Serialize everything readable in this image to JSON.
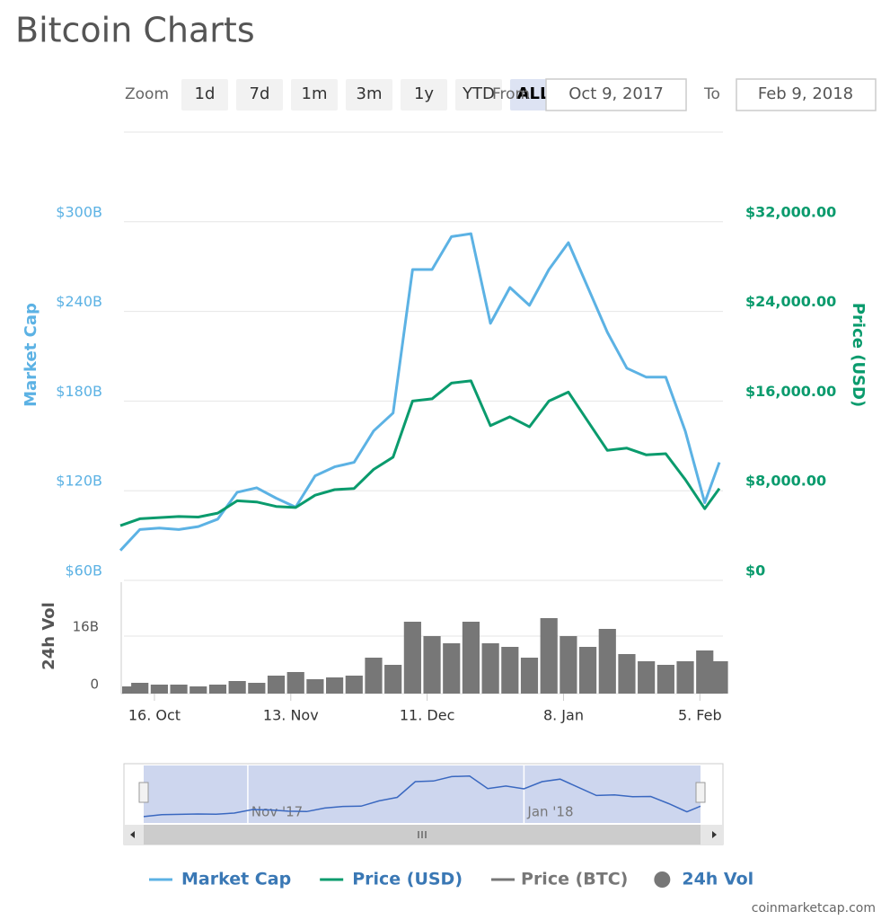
{
  "header": {
    "title": "Bitcoin Charts"
  },
  "controls": {
    "zoom_label": "Zoom",
    "zoom_buttons": [
      "1d",
      "7d",
      "1m",
      "3m",
      "1y",
      "YTD",
      "ALL"
    ],
    "from_label": "From",
    "from_date": "Oct 9, 2017",
    "to_label": "To",
    "to_date": "Feb 9, 2018"
  },
  "chart_data": [
    {
      "type": "line",
      "y_label": "Market Cap",
      "y2_label": "Price (USD)",
      "grid": true,
      "x": [
        "2017-10-09",
        "2017-10-13",
        "2017-10-17",
        "2017-10-21",
        "2017-10-25",
        "2017-10-29",
        "2017-11-02",
        "2017-11-06",
        "2017-11-10",
        "2017-11-14",
        "2017-11-18",
        "2017-11-22",
        "2017-11-26",
        "2017-11-30",
        "2017-12-04",
        "2017-12-08",
        "2017-12-12",
        "2017-12-16",
        "2017-12-20",
        "2017-12-24",
        "2017-12-28",
        "2018-01-01",
        "2018-01-05",
        "2018-01-09",
        "2018-01-13",
        "2018-01-17",
        "2018-01-21",
        "2018-01-25",
        "2018-01-29",
        "2018-02-02",
        "2018-02-06",
        "2018-02-09"
      ],
      "xlim": [
        "2017-10-09",
        "2018-02-09"
      ],
      "ylim": [
        60,
        360
      ],
      "yticks": [
        {
          "value": 60,
          "label": "$60B"
        },
        {
          "value": 120,
          "label": "$120B"
        },
        {
          "value": 180,
          "label": "$180B"
        },
        {
          "value": 240,
          "label": "$240B"
        },
        {
          "value": 300,
          "label": "$300B"
        }
      ],
      "y2lim": [
        0,
        40000
      ],
      "y2ticks": [
        {
          "value": 0,
          "label": "$0"
        },
        {
          "value": 8000,
          "label": "$8,000.00"
        },
        {
          "value": 16000,
          "label": "$16,000.00"
        },
        {
          "value": 24000,
          "label": "$24,000.00"
        },
        {
          "value": 32000,
          "label": "$32,000.00"
        }
      ],
      "series": [
        {
          "name": "Market Cap",
          "color": "#5cb2e4",
          "axis": "y",
          "values": [
            80,
            94,
            95,
            94,
            96,
            101,
            119,
            122,
            115,
            109,
            130,
            136,
            139,
            160,
            172,
            268,
            268,
            290,
            292,
            232,
            256,
            244,
            268,
            286,
            256,
            226,
            202,
            196,
            196,
            160,
            112,
            139
          ]
        },
        {
          "name": "Price (USD)",
          "color": "#0a9b6d",
          "axis": "y2",
          "values": [
            4880,
            5500,
            5600,
            5700,
            5650,
            6000,
            7100,
            7000,
            6600,
            6500,
            7600,
            8100,
            8200,
            9900,
            11000,
            16000,
            16200,
            17600,
            17800,
            13800,
            14600,
            13700,
            16000,
            16800,
            14200,
            11600,
            11800,
            11200,
            11300,
            9000,
            6400,
            8200
          ]
        }
      ],
      "hidden_series": [
        {
          "name": "Price (BTC)",
          "color": "#777777"
        }
      ],
      "navigator_ticks": [
        {
          "value": "2017-11-01",
          "label": "Nov '17"
        },
        {
          "value": "2018-01-01",
          "label": "Jan '18"
        }
      ]
    },
    {
      "type": "bar",
      "y_label": "24h Vol",
      "name": "24h Vol",
      "color": "#777777",
      "x": [
        "2017-10-09",
        "2017-10-13",
        "2017-10-17",
        "2017-10-21",
        "2017-10-25",
        "2017-10-29",
        "2017-11-02",
        "2017-11-06",
        "2017-11-10",
        "2017-11-14",
        "2017-11-18",
        "2017-11-22",
        "2017-11-26",
        "2017-11-30",
        "2017-12-04",
        "2017-12-08",
        "2017-12-12",
        "2017-12-16",
        "2017-12-20",
        "2017-12-24",
        "2017-12-28",
        "2018-01-01",
        "2018-01-05",
        "2018-01-09",
        "2018-01-13",
        "2018-01-17",
        "2018-01-21",
        "2018-01-25",
        "2018-01-29",
        "2018-02-02",
        "2018-02-06",
        "2018-02-09"
      ],
      "values": [
        2,
        3,
        2.5,
        2.5,
        2,
        2.5,
        3.5,
        3,
        5,
        6,
        4,
        4.5,
        5,
        10,
        8,
        20,
        16,
        14,
        20,
        14,
        13,
        10,
        21,
        16,
        13,
        18,
        11,
        9,
        8,
        9,
        12,
        9
      ],
      "xlim": [
        "2017-10-09",
        "2018-02-09"
      ],
      "xticks": [
        {
          "value": "2017-10-16",
          "label": "16. Oct"
        },
        {
          "value": "2017-11-13",
          "label": "13. Nov"
        },
        {
          "value": "2017-12-11",
          "label": "11. Dec"
        },
        {
          "value": "2018-01-08",
          "label": "8. Jan"
        },
        {
          "value": "2018-02-05",
          "label": "5. Feb"
        }
      ],
      "ylim": [
        0,
        32
      ],
      "yticks": [
        0,
        {
          "value": 16,
          "label": "16B"
        }
      ]
    }
  ],
  "credit": "coinmarketcap.com"
}
